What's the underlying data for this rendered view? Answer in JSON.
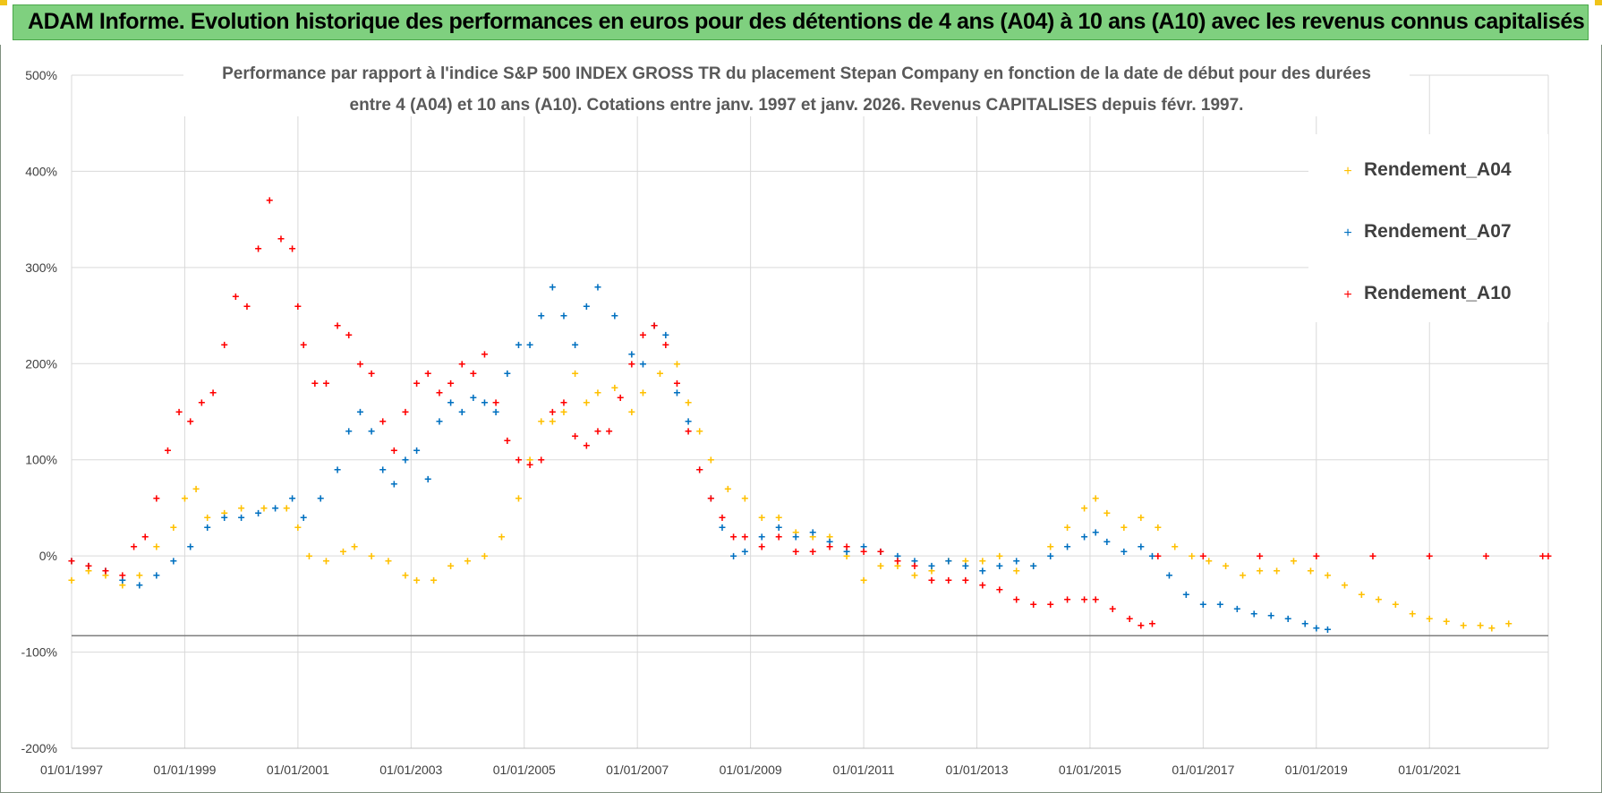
{
  "header": {
    "banner_title": "ADAM Informe. Evolution historique des performances en euros pour des détentions de 4 ans (A04) à 10 ans (A10) avec les revenus connus capitalisés"
  },
  "colors": {
    "banner_bg": "#7fd07f",
    "a04": "#ffc000",
    "a07": "#0070c0",
    "a10": "#ff0000",
    "grid": "#d9d9d9"
  },
  "chart_data": {
    "type": "scatter",
    "title_lines": [
      "Performance par rapport à l'indice S&P 500 INDEX GROSS TR  du placement Stepan Company en fonction de la date de début pour des durées",
      "entre 4 (A04) et 10 ans (A10).  Cotations entre janv. 1997 et janv. 2026. Revenus CAPITALISES depuis févr. 1997."
    ],
    "xlabel": "",
    "ylabel": "",
    "x_range": [
      1997.0,
      2023.1
    ],
    "ylim": [
      -200,
      500
    ],
    "y_ticks": [
      -200,
      -100,
      0,
      100,
      200,
      300,
      400,
      500
    ],
    "y_tick_labels": [
      "-200%",
      "-100%",
      "0%",
      "100%",
      "200%",
      "300%",
      "400%",
      "500%"
    ],
    "x_ticks": [
      1997,
      1999,
      2001,
      2003,
      2005,
      2007,
      2009,
      2011,
      2013,
      2015,
      2017,
      2019,
      2021
    ],
    "x_tick_labels": [
      "01/01/1997",
      "01/01/1999",
      "01/01/2001",
      "01/01/2003",
      "01/01/2005",
      "01/01/2007",
      "01/01/2009",
      "01/01/2011",
      "01/01/2013",
      "01/01/2015",
      "01/01/2017",
      "01/01/2019",
      "01/01/2021"
    ],
    "grid": true,
    "reference_line_y": -83,
    "legend_position": "top-right",
    "series": [
      {
        "name": "Rendement_A04",
        "color": "#ffc000",
        "points": [
          [
            1997.0,
            -25
          ],
          [
            1997.3,
            -15
          ],
          [
            1997.6,
            -20
          ],
          [
            1997.9,
            -30
          ],
          [
            1998.2,
            -20
          ],
          [
            1998.5,
            10
          ],
          [
            1998.8,
            30
          ],
          [
            1999.0,
            60
          ],
          [
            1999.2,
            70
          ],
          [
            1999.4,
            40
          ],
          [
            1999.7,
            45
          ],
          [
            2000.0,
            50
          ],
          [
            2000.4,
            50
          ],
          [
            2000.8,
            50
          ],
          [
            2001.0,
            30
          ],
          [
            2001.2,
            0
          ],
          [
            2001.5,
            -5
          ],
          [
            2001.8,
            5
          ],
          [
            2002.0,
            10
          ],
          [
            2002.3,
            0
          ],
          [
            2002.6,
            -5
          ],
          [
            2002.9,
            -20
          ],
          [
            2003.1,
            -25
          ],
          [
            2003.4,
            -25
          ],
          [
            2003.7,
            -10
          ],
          [
            2004.0,
            -5
          ],
          [
            2004.3,
            0
          ],
          [
            2004.6,
            20
          ],
          [
            2004.9,
            60
          ],
          [
            2005.1,
            100
          ],
          [
            2005.3,
            140
          ],
          [
            2005.5,
            140
          ],
          [
            2005.7,
            150
          ],
          [
            2005.9,
            190
          ],
          [
            2006.1,
            160
          ],
          [
            2006.3,
            170
          ],
          [
            2006.6,
            175
          ],
          [
            2006.9,
            150
          ],
          [
            2007.1,
            170
          ],
          [
            2007.4,
            190
          ],
          [
            2007.7,
            200
          ],
          [
            2007.9,
            160
          ],
          [
            2008.1,
            130
          ],
          [
            2008.3,
            100
          ],
          [
            2008.6,
            70
          ],
          [
            2008.9,
            60
          ],
          [
            2009.2,
            40
          ],
          [
            2009.5,
            40
          ],
          [
            2009.8,
            25
          ],
          [
            2010.1,
            20
          ],
          [
            2010.4,
            20
          ],
          [
            2010.7,
            0
          ],
          [
            2011.0,
            -25
          ],
          [
            2011.3,
            -10
          ],
          [
            2011.6,
            -10
          ],
          [
            2011.9,
            -20
          ],
          [
            2012.2,
            -15
          ],
          [
            2012.5,
            -5
          ],
          [
            2012.8,
            -5
          ],
          [
            2013.1,
            -5
          ],
          [
            2013.4,
            0
          ],
          [
            2013.7,
            -15
          ],
          [
            2014.0,
            -10
          ],
          [
            2014.3,
            10
          ],
          [
            2014.6,
            30
          ],
          [
            2014.9,
            50
          ],
          [
            2015.1,
            60
          ],
          [
            2015.3,
            45
          ],
          [
            2015.6,
            30
          ],
          [
            2015.9,
            40
          ],
          [
            2016.2,
            30
          ],
          [
            2016.5,
            10
          ],
          [
            2016.8,
            0
          ],
          [
            2017.1,
            -5
          ],
          [
            2017.4,
            -10
          ],
          [
            2017.7,
            -20
          ],
          [
            2018.0,
            -15
          ],
          [
            2018.3,
            -15
          ],
          [
            2018.6,
            -5
          ],
          [
            2018.9,
            -15
          ],
          [
            2019.2,
            -20
          ],
          [
            2019.5,
            -30
          ],
          [
            2019.8,
            -40
          ],
          [
            2020.1,
            -45
          ],
          [
            2020.4,
            -50
          ],
          [
            2020.7,
            -60
          ],
          [
            2021.0,
            -65
          ],
          [
            2021.3,
            -68
          ],
          [
            2021.6,
            -72
          ],
          [
            2021.9,
            -72
          ],
          [
            2022.1,
            -75
          ],
          [
            2022.4,
            -70
          ]
        ]
      },
      {
        "name": "Rendement_A07",
        "color": "#0070c0",
        "points": [
          [
            1997.0,
            -5
          ],
          [
            1997.3,
            -10
          ],
          [
            1997.6,
            -15
          ],
          [
            1997.9,
            -25
          ],
          [
            1998.2,
            -30
          ],
          [
            1998.5,
            -20
          ],
          [
            1998.8,
            -5
          ],
          [
            1999.1,
            10
          ],
          [
            1999.4,
            30
          ],
          [
            1999.7,
            40
          ],
          [
            2000.0,
            40
          ],
          [
            2000.3,
            45
          ],
          [
            2000.6,
            50
          ],
          [
            2000.9,
            60
          ],
          [
            2001.1,
            40
          ],
          [
            2001.4,
            60
          ],
          [
            2001.7,
            90
          ],
          [
            2001.9,
            130
          ],
          [
            2002.1,
            150
          ],
          [
            2002.3,
            130
          ],
          [
            2002.5,
            90
          ],
          [
            2002.7,
            75
          ],
          [
            2002.9,
            100
          ],
          [
            2003.1,
            110
          ],
          [
            2003.3,
            80
          ],
          [
            2003.5,
            140
          ],
          [
            2003.7,
            160
          ],
          [
            2003.9,
            150
          ],
          [
            2004.1,
            165
          ],
          [
            2004.3,
            160
          ],
          [
            2004.5,
            150
          ],
          [
            2004.7,
            190
          ],
          [
            2004.9,
            220
          ],
          [
            2005.1,
            220
          ],
          [
            2005.3,
            250
          ],
          [
            2005.5,
            280
          ],
          [
            2005.7,
            250
          ],
          [
            2005.9,
            220
          ],
          [
            2006.1,
            260
          ],
          [
            2006.3,
            280
          ],
          [
            2006.6,
            250
          ],
          [
            2006.9,
            210
          ],
          [
            2007.1,
            200
          ],
          [
            2007.3,
            240
          ],
          [
            2007.5,
            230
          ],
          [
            2007.7,
            170
          ],
          [
            2007.9,
            140
          ],
          [
            2008.1,
            90
          ],
          [
            2008.3,
            60
          ],
          [
            2008.5,
            30
          ],
          [
            2008.7,
            0
          ],
          [
            2008.9,
            5
          ],
          [
            2009.2,
            20
          ],
          [
            2009.5,
            30
          ],
          [
            2009.8,
            20
          ],
          [
            2010.1,
            25
          ],
          [
            2010.4,
            15
          ],
          [
            2010.7,
            5
          ],
          [
            2011.0,
            10
          ],
          [
            2011.3,
            5
          ],
          [
            2011.6,
            0
          ],
          [
            2011.9,
            -5
          ],
          [
            2012.2,
            -10
          ],
          [
            2012.5,
            -5
          ],
          [
            2012.8,
            -10
          ],
          [
            2013.1,
            -15
          ],
          [
            2013.4,
            -10
          ],
          [
            2013.7,
            -5
          ],
          [
            2014.0,
            -10
          ],
          [
            2014.3,
            0
          ],
          [
            2014.6,
            10
          ],
          [
            2014.9,
            20
          ],
          [
            2015.1,
            25
          ],
          [
            2015.3,
            15
          ],
          [
            2015.6,
            5
          ],
          [
            2015.9,
            10
          ],
          [
            2016.1,
            0
          ],
          [
            2016.4,
            -20
          ],
          [
            2016.7,
            -40
          ],
          [
            2017.0,
            -50
          ],
          [
            2017.3,
            -50
          ],
          [
            2017.6,
            -55
          ],
          [
            2017.9,
            -60
          ],
          [
            2018.2,
            -62
          ],
          [
            2018.5,
            -65
          ],
          [
            2018.8,
            -70
          ],
          [
            2019.0,
            -75
          ],
          [
            2019.2,
            -76
          ]
        ]
      },
      {
        "name": "Rendement_A10",
        "color": "#ff0000",
        "points": [
          [
            1997.0,
            -5
          ],
          [
            1997.3,
            -10
          ],
          [
            1997.6,
            -15
          ],
          [
            1997.9,
            -20
          ],
          [
            1998.1,
            10
          ],
          [
            1998.3,
            20
          ],
          [
            1998.5,
            60
          ],
          [
            1998.7,
            110
          ],
          [
            1998.9,
            150
          ],
          [
            1999.1,
            140
          ],
          [
            1999.3,
            160
          ],
          [
            1999.5,
            170
          ],
          [
            1999.7,
            220
          ],
          [
            1999.9,
            270
          ],
          [
            2000.1,
            260
          ],
          [
            2000.3,
            320
          ],
          [
            2000.5,
            370
          ],
          [
            2000.7,
            330
          ],
          [
            2000.9,
            320
          ],
          [
            2001.0,
            260
          ],
          [
            2001.1,
            220
          ],
          [
            2001.3,
            180
          ],
          [
            2001.5,
            180
          ],
          [
            2001.7,
            240
          ],
          [
            2001.9,
            230
          ],
          [
            2002.1,
            200
          ],
          [
            2002.3,
            190
          ],
          [
            2002.5,
            140
          ],
          [
            2002.7,
            110
          ],
          [
            2002.9,
            150
          ],
          [
            2003.1,
            180
          ],
          [
            2003.3,
            190
          ],
          [
            2003.5,
            170
          ],
          [
            2003.7,
            180
          ],
          [
            2003.9,
            200
          ],
          [
            2004.1,
            190
          ],
          [
            2004.3,
            210
          ],
          [
            2004.5,
            160
          ],
          [
            2004.7,
            120
          ],
          [
            2004.9,
            100
          ],
          [
            2005.1,
            95
          ],
          [
            2005.3,
            100
          ],
          [
            2005.5,
            150
          ],
          [
            2005.7,
            160
          ],
          [
            2005.9,
            125
          ],
          [
            2006.1,
            115
          ],
          [
            2006.3,
            130
          ],
          [
            2006.5,
            130
          ],
          [
            2006.7,
            165
          ],
          [
            2006.9,
            200
          ],
          [
            2007.1,
            230
          ],
          [
            2007.3,
            240
          ],
          [
            2007.5,
            220
          ],
          [
            2007.7,
            180
          ],
          [
            2007.9,
            130
          ],
          [
            2008.1,
            90
          ],
          [
            2008.3,
            60
          ],
          [
            2008.5,
            40
          ],
          [
            2008.7,
            20
          ],
          [
            2008.9,
            20
          ],
          [
            2009.2,
            10
          ],
          [
            2009.5,
            20
          ],
          [
            2009.8,
            5
          ],
          [
            2010.1,
            5
          ],
          [
            2010.4,
            10
          ],
          [
            2010.7,
            10
          ],
          [
            2011.0,
            5
          ],
          [
            2011.3,
            5
          ],
          [
            2011.6,
            -5
          ],
          [
            2011.9,
            -10
          ],
          [
            2012.2,
            -25
          ],
          [
            2012.5,
            -25
          ],
          [
            2012.8,
            -25
          ],
          [
            2013.1,
            -30
          ],
          [
            2013.4,
            -35
          ],
          [
            2013.7,
            -45
          ],
          [
            2014.0,
            -50
          ],
          [
            2014.3,
            -50
          ],
          [
            2014.6,
            -45
          ],
          [
            2014.9,
            -45
          ],
          [
            2015.1,
            -45
          ],
          [
            2015.4,
            -55
          ],
          [
            2015.7,
            -65
          ],
          [
            2015.9,
            -72
          ],
          [
            2016.1,
            -70
          ],
          [
            2016.2,
            0
          ],
          [
            2017.0,
            0
          ],
          [
            2018.0,
            0
          ],
          [
            2019.0,
            0
          ],
          [
            2020.0,
            0
          ],
          [
            2021.0,
            0
          ],
          [
            2022.0,
            0
          ],
          [
            2023.0,
            0
          ],
          [
            2023.1,
            0
          ]
        ]
      }
    ]
  }
}
